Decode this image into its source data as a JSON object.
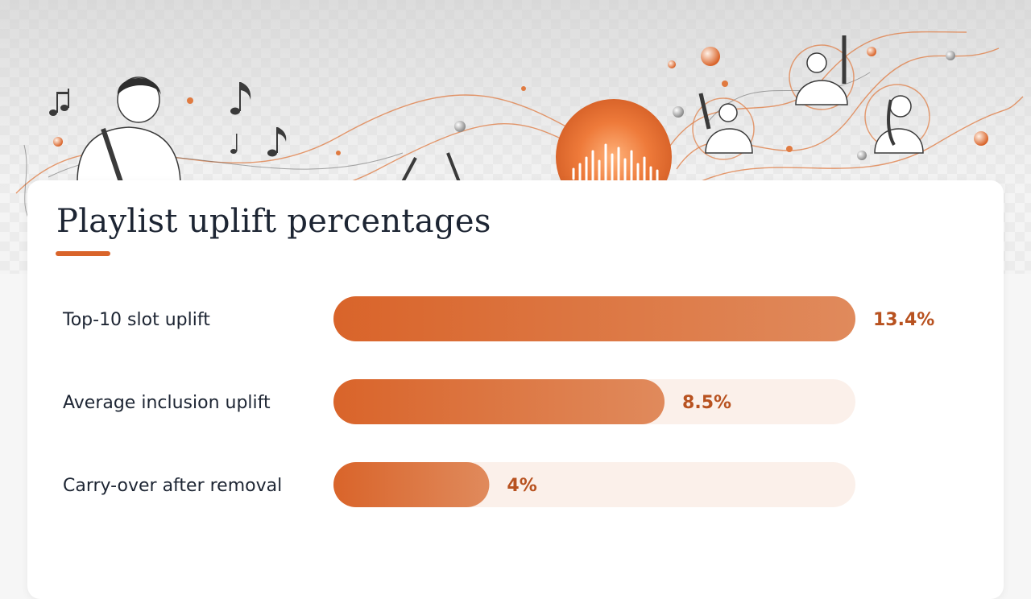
{
  "colors": {
    "accent": "#d9642a",
    "accent_light": "#e08a5c",
    "track": "#fbf0ea",
    "value_text": "#b85220",
    "text": "#1d2533"
  },
  "chart_data": {
    "type": "bar",
    "orientation": "horizontal",
    "title": "Playlist uplift percentages",
    "categories": [
      "Top-10 slot uplift",
      "Average inclusion uplift",
      "Carry-over after removal"
    ],
    "values": [
      13.4,
      8.5,
      4
    ],
    "value_labels": [
      "13.4%",
      "8.5%",
      "4%"
    ],
    "xlim": [
      0,
      13.4
    ],
    "grid": false,
    "legend": "none"
  }
}
